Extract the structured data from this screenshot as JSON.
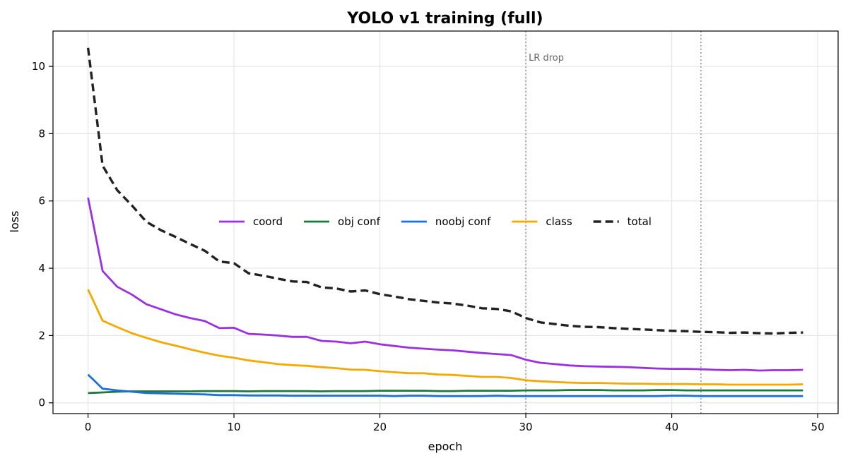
{
  "chart_data": {
    "type": "line",
    "title": "YOLO v1 training (full)",
    "xlabel": "epoch",
    "ylabel": "loss",
    "xlim": [
      -2.4,
      51.4
    ],
    "ylim": [
      -0.32,
      11.05
    ],
    "xticks": [
      0,
      10,
      20,
      30,
      40,
      50
    ],
    "yticks": [
      0,
      2,
      4,
      6,
      8,
      10
    ],
    "grid": true,
    "legend": "center, single row",
    "x": [
      0,
      1,
      2,
      3,
      4,
      5,
      6,
      7,
      8,
      9,
      10,
      11,
      12,
      13,
      14,
      15,
      16,
      17,
      18,
      19,
      20,
      21,
      22,
      23,
      24,
      25,
      26,
      27,
      28,
      29,
      30,
      31,
      32,
      33,
      34,
      35,
      36,
      37,
      38,
      39,
      40,
      41,
      42,
      43,
      44,
      45,
      46,
      47,
      48,
      49
    ],
    "series": [
      {
        "name": "coord",
        "color": "#9b30e0",
        "dash": "solid",
        "values": [
          6.1,
          3.92,
          3.45,
          3.22,
          2.93,
          2.78,
          2.63,
          2.52,
          2.43,
          2.22,
          2.23,
          2.05,
          2.03,
          2.0,
          1.96,
          1.96,
          1.84,
          1.82,
          1.77,
          1.82,
          1.74,
          1.69,
          1.64,
          1.61,
          1.58,
          1.56,
          1.52,
          1.48,
          1.45,
          1.42,
          1.28,
          1.19,
          1.15,
          1.11,
          1.09,
          1.08,
          1.07,
          1.06,
          1.04,
          1.02,
          1.01,
          1.01,
          1.0,
          0.98,
          0.97,
          0.98,
          0.96,
          0.97,
          0.97,
          0.98
        ]
      },
      {
        "name": "obj conf",
        "color": "#1b7a3a",
        "dash": "solid",
        "values": [
          0.29,
          0.31,
          0.33,
          0.34,
          0.34,
          0.34,
          0.34,
          0.34,
          0.35,
          0.35,
          0.35,
          0.34,
          0.35,
          0.35,
          0.35,
          0.35,
          0.34,
          0.35,
          0.35,
          0.35,
          0.36,
          0.36,
          0.36,
          0.36,
          0.35,
          0.35,
          0.36,
          0.36,
          0.36,
          0.36,
          0.37,
          0.37,
          0.37,
          0.38,
          0.38,
          0.38,
          0.37,
          0.37,
          0.37,
          0.38,
          0.38,
          0.37,
          0.37,
          0.37,
          0.37,
          0.37,
          0.37,
          0.37,
          0.37,
          0.37
        ]
      },
      {
        "name": "noobj conf",
        "color": "#1e6fd9",
        "dash": "solid",
        "values": [
          0.84,
          0.42,
          0.37,
          0.33,
          0.29,
          0.28,
          0.27,
          0.26,
          0.25,
          0.23,
          0.23,
          0.22,
          0.22,
          0.22,
          0.21,
          0.21,
          0.21,
          0.21,
          0.21,
          0.21,
          0.21,
          0.2,
          0.21,
          0.21,
          0.2,
          0.2,
          0.2,
          0.2,
          0.21,
          0.2,
          0.2,
          0.2,
          0.2,
          0.2,
          0.2,
          0.2,
          0.2,
          0.2,
          0.2,
          0.2,
          0.21,
          0.21,
          0.2,
          0.2,
          0.2,
          0.2,
          0.2,
          0.2,
          0.2,
          0.2
        ]
      },
      {
        "name": "class",
        "color": "#f5a800",
        "dash": "solid",
        "values": [
          3.37,
          2.44,
          2.25,
          2.07,
          1.93,
          1.8,
          1.7,
          1.59,
          1.49,
          1.4,
          1.34,
          1.26,
          1.21,
          1.15,
          1.12,
          1.1,
          1.06,
          1.03,
          0.99,
          0.98,
          0.94,
          0.91,
          0.88,
          0.88,
          0.84,
          0.83,
          0.8,
          0.77,
          0.77,
          0.74,
          0.67,
          0.64,
          0.62,
          0.6,
          0.59,
          0.59,
          0.58,
          0.57,
          0.57,
          0.56,
          0.56,
          0.56,
          0.55,
          0.55,
          0.54,
          0.54,
          0.54,
          0.54,
          0.54,
          0.55
        ]
      },
      {
        "name": "total",
        "color": "#222222",
        "dash": "dashed",
        "values": [
          10.55,
          7.05,
          6.32,
          5.87,
          5.38,
          5.13,
          4.93,
          4.72,
          4.52,
          4.2,
          4.15,
          3.85,
          3.78,
          3.69,
          3.61,
          3.59,
          3.43,
          3.4,
          3.31,
          3.34,
          3.23,
          3.16,
          3.08,
          3.03,
          2.98,
          2.95,
          2.89,
          2.81,
          2.79,
          2.72,
          2.52,
          2.39,
          2.34,
          2.29,
          2.26,
          2.25,
          2.22,
          2.2,
          2.18,
          2.16,
          2.14,
          2.13,
          2.11,
          2.1,
          2.08,
          2.09,
          2.07,
          2.06,
          2.08,
          2.09
        ]
      }
    ],
    "vlines": [
      {
        "x": 30,
        "label": "LR drop",
        "color": "#999999",
        "dash": "dotted"
      },
      {
        "x": 42,
        "label": "",
        "color": "#999999",
        "dash": "dotted"
      }
    ]
  }
}
